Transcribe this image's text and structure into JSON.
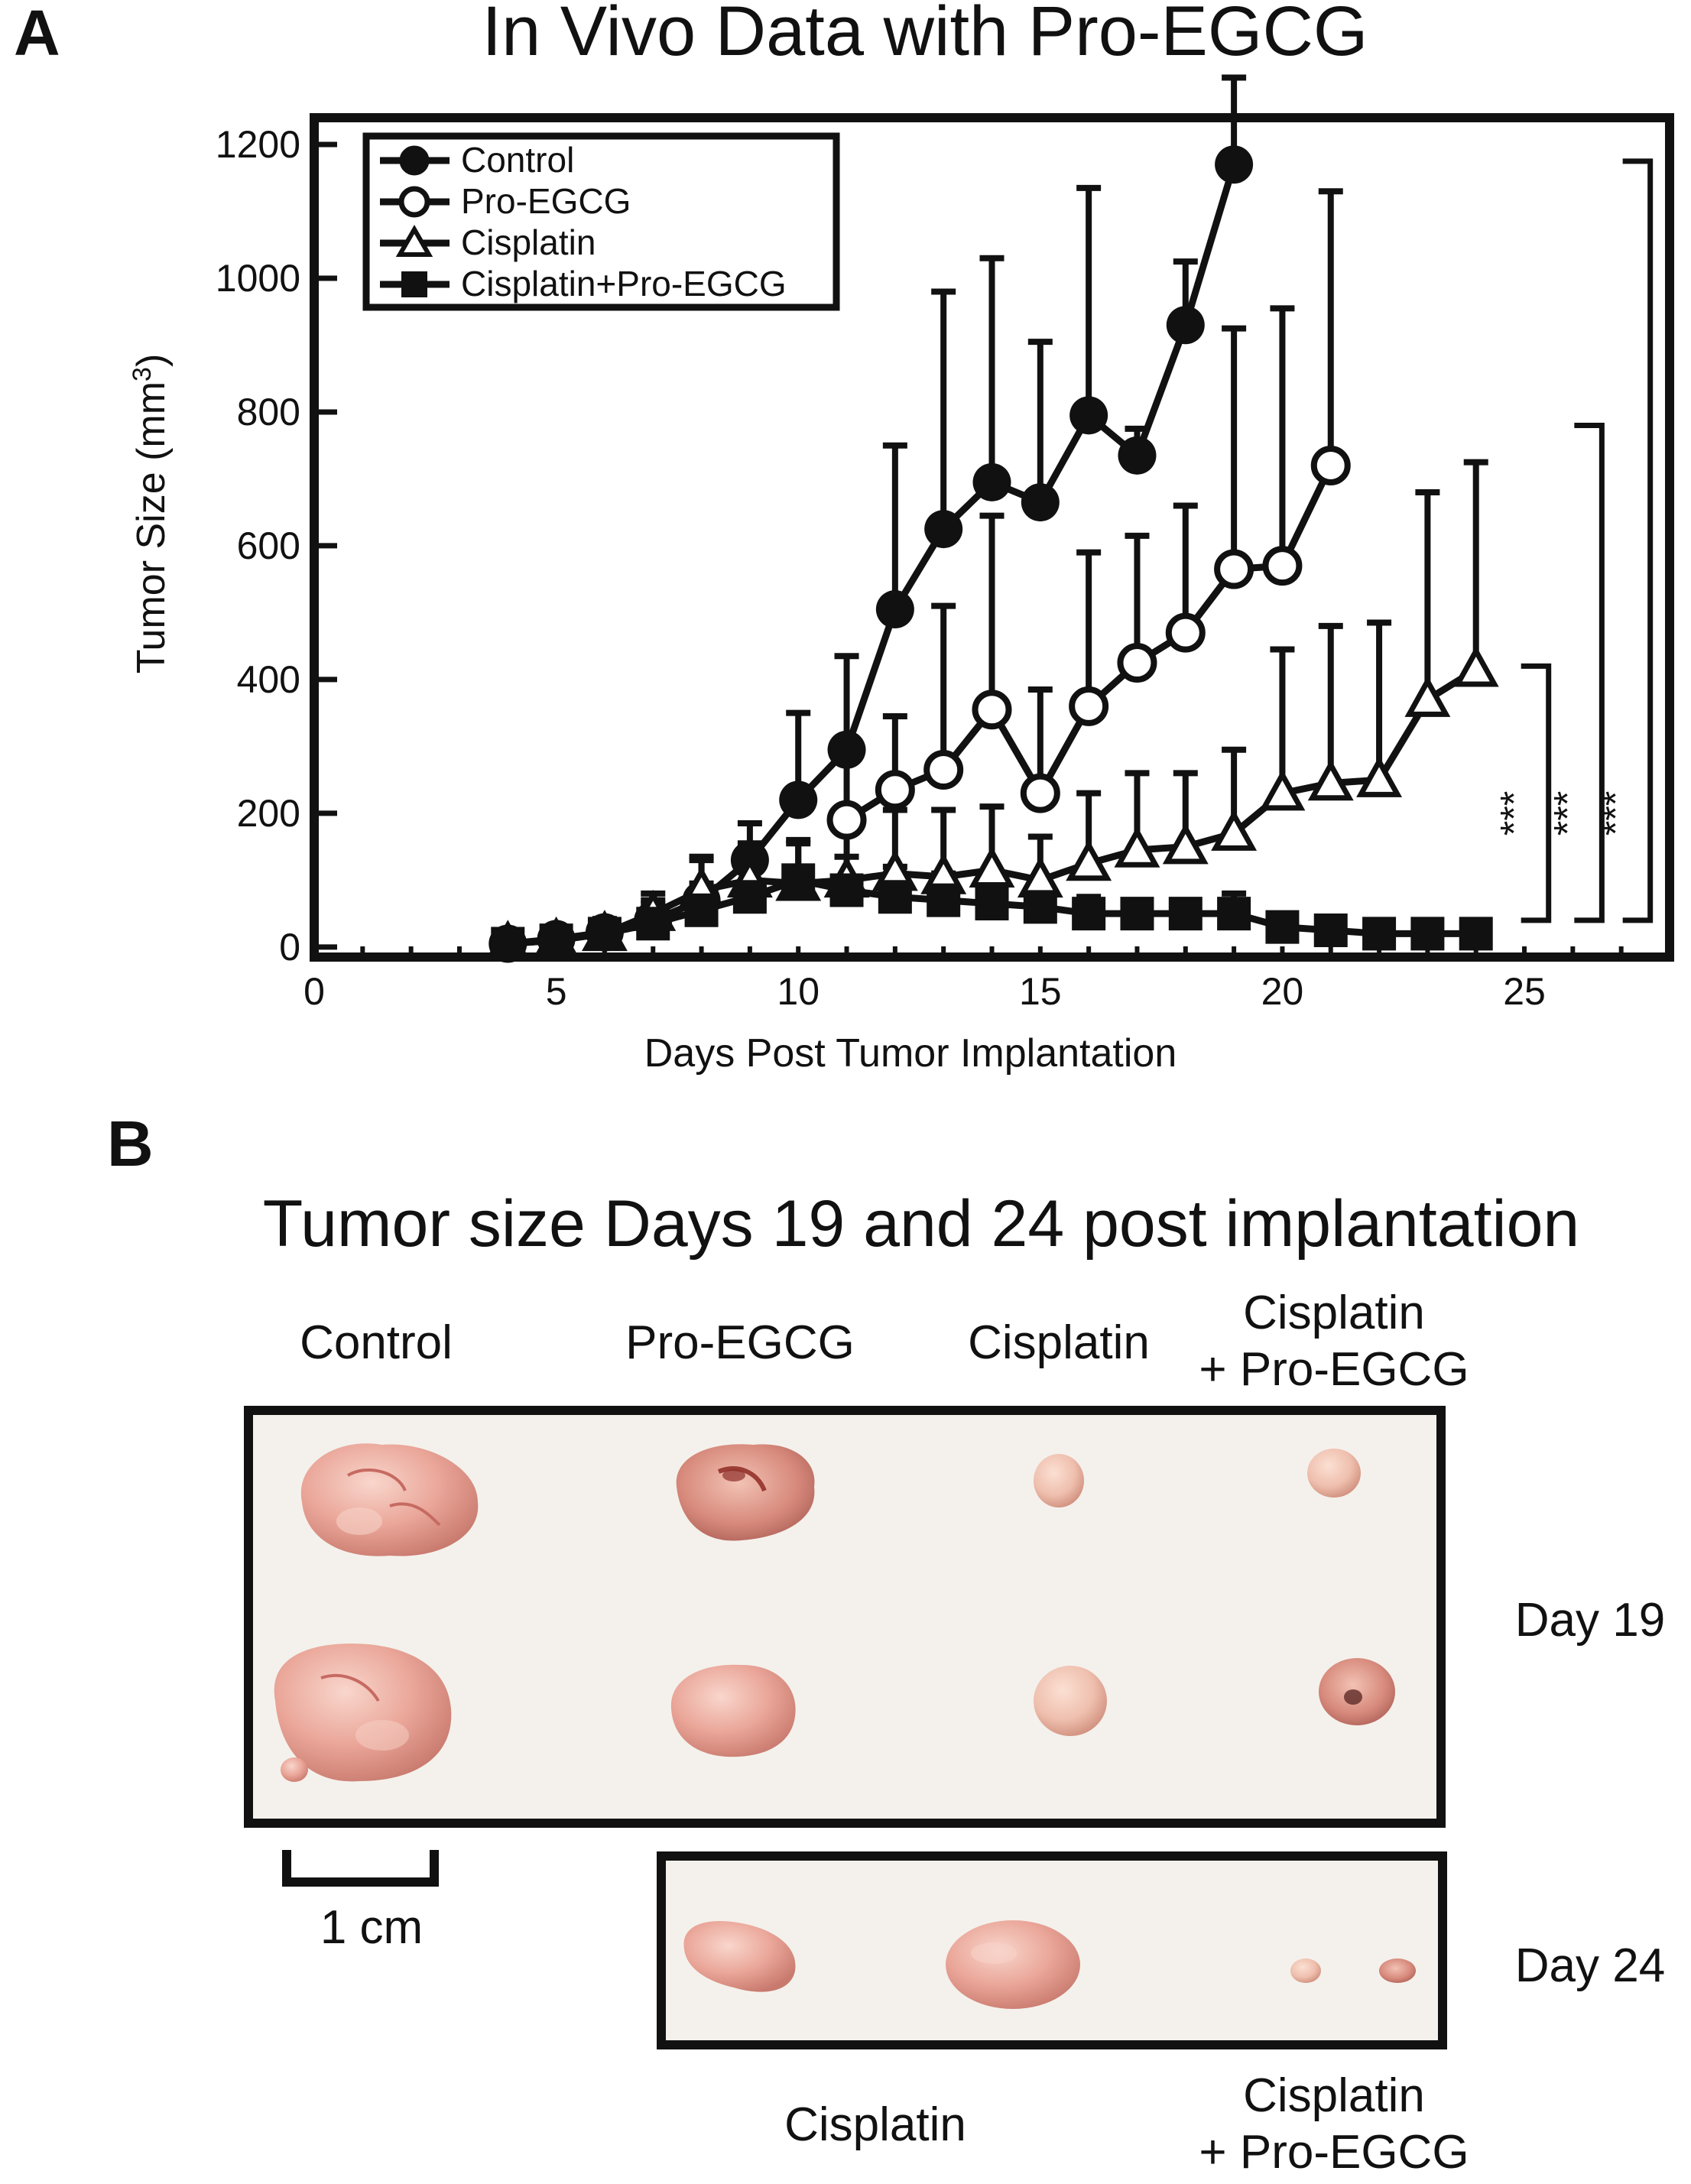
{
  "panel_a": {
    "letter": "A",
    "chart_data": {
      "type": "line",
      "title": "In Vivo Data with Pro-EGCG",
      "xlabel": "Days Post Tumor Implantation",
      "ylabel": "Tumor Size (mm",
      "ylabel_sup": "3",
      "ylabel_close": ")",
      "xlim": [
        0,
        28
      ],
      "ylim": [
        -15,
        1240
      ],
      "xticks": [
        0,
        5,
        10,
        15,
        20,
        25
      ],
      "yticks": [
        0,
        200,
        400,
        600,
        800,
        1000,
        1200
      ],
      "legend_position": "top-left",
      "series": [
        {
          "name": "Control",
          "marker": "filled-circle",
          "x": [
            4,
            5,
            6,
            7,
            8,
            9,
            10,
            11,
            12,
            13,
            14,
            15,
            16,
            17,
            18,
            19
          ],
          "y": [
            5,
            12,
            22,
            40,
            70,
            130,
            220,
            295,
            505,
            625,
            695,
            665,
            795,
            735,
            930,
            1170
          ],
          "err": [
            15,
            18,
            20,
            30,
            60,
            55,
            130,
            140,
            245,
            355,
            335,
            240,
            340,
            40,
            95,
            130
          ]
        },
        {
          "name": "Pro-EGCG",
          "marker": "open-circle",
          "x": [
            11,
            12,
            13,
            14,
            15,
            16,
            17,
            18,
            19,
            20,
            21
          ],
          "y": [
            190,
            235,
            265,
            355,
            230,
            360,
            425,
            470,
            565,
            570,
            720
          ],
          "err": [
            115,
            110,
            245,
            290,
            155,
            230,
            190,
            190,
            360,
            385,
            410
          ]
        },
        {
          "name": "Cisplatin",
          "marker": "open-triangle",
          "x": [
            4,
            5,
            6,
            7,
            8,
            9,
            10,
            11,
            12,
            13,
            14,
            15,
            16,
            17,
            18,
            19,
            20,
            21,
            22,
            23,
            24
          ],
          "y": [
            5,
            10,
            20,
            50,
            85,
            100,
            95,
            100,
            110,
            105,
            115,
            100,
            125,
            145,
            150,
            170,
            230,
            245,
            250,
            370,
            415
          ],
          "err": [
            10,
            15,
            20,
            30,
            50,
            55,
            65,
            80,
            95,
            100,
            95,
            65,
            105,
            115,
            110,
            125,
            215,
            235,
            235,
            310,
            310
          ]
        },
        {
          "name": "Cisplatin+Pro-EGCG",
          "marker": "filled-square",
          "x": [
            4,
            5,
            6,
            7,
            8,
            9,
            10,
            11,
            12,
            13,
            14,
            15,
            16,
            17,
            18,
            19,
            20,
            21,
            22,
            23,
            24
          ],
          "y": [
            5,
            10,
            20,
            35,
            55,
            75,
            100,
            85,
            75,
            70,
            65,
            60,
            50,
            50,
            50,
            50,
            30,
            25,
            20,
            20,
            20
          ],
          "err": [
            10,
            15,
            20,
            30,
            40,
            45,
            55,
            50,
            45,
            40,
            40,
            35,
            25,
            20,
            20,
            30,
            15,
            15,
            10,
            10,
            10
          ]
        }
      ],
      "significance_brackets": [
        {
          "label": "***",
          "x": 25.5,
          "y_low": 40,
          "y_high": 420
        },
        {
          "label": "***",
          "x": 26.6,
          "y_low": 40,
          "y_high": 780
        },
        {
          "label": "***",
          "x": 27.6,
          "y_low": 40,
          "y_high": 1175
        }
      ]
    }
  },
  "panel_b": {
    "letter": "B",
    "title": "Tumor size Days 19 and 24 post implantation",
    "columns": [
      "Control",
      "Pro-EGCG",
      "Cisplatin"
    ],
    "column_combo": [
      "Cisplatin",
      "+ Pro-EGCG"
    ],
    "day19_label": "Day 19",
    "day24_label": "Day 24",
    "scale_bar_label": "1 cm",
    "bottom_left_label": "Cisplatin",
    "bottom_right_label": [
      "Cisplatin",
      "+ Pro-EGCG"
    ],
    "colors": {
      "tumor": "#e9a49a",
      "tumor_shadow": "#c9706a",
      "tumor_highlight": "#f7d2c8",
      "background_photo": "#f4f1ec",
      "blood": "#b8322e"
    }
  }
}
